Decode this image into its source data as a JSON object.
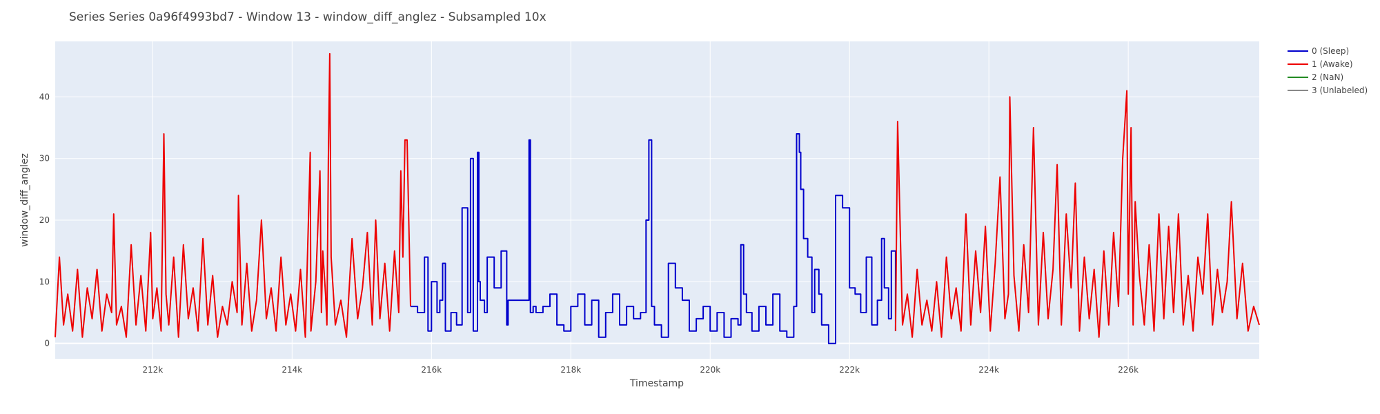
{
  "chart_data": {
    "type": "line",
    "title": "Series Series 0a96f4993bd7 - Window 13 - window_diff_anglez - Subsampled 10x",
    "xlabel": "Timestamp",
    "ylabel": "window_diff_anglez",
    "xlim": [
      210600,
      227880
    ],
    "ylim": [
      -2.5,
      49
    ],
    "x_ticks": [
      212000,
      214000,
      216000,
      218000,
      220000,
      222000,
      224000,
      226000
    ],
    "x_tick_labels": [
      "212k",
      "214k",
      "216k",
      "218k",
      "220k",
      "222k",
      "224k",
      "226k"
    ],
    "y_ticks": [
      0,
      10,
      20,
      30,
      40
    ],
    "y_tick_labels": [
      "0",
      "10",
      "20",
      "30",
      "40"
    ],
    "grid": true,
    "legend_position": "right",
    "background": "#e5ecf6",
    "legend": [
      {
        "label": "0 (Sleep)",
        "color": "#0000cc"
      },
      {
        "label": "1 (Awake)",
        "color": "#ee0000"
      },
      {
        "label": "2 (NaN)",
        "color": "#228b22"
      },
      {
        "label": "3 (Unlabeled)",
        "color": "#888888"
      }
    ],
    "series": [
      {
        "color": "#ee0000",
        "step": false,
        "x": [
          210600,
          210660,
          210720,
          210780,
          210850,
          210920,
          210990,
          211060,
          211130,
          211200,
          211270,
          211340,
          211410,
          211440,
          211480,
          211550,
          211620,
          211690,
          211760,
          211830,
          211900,
          211970,
          212000,
          212060,
          212120,
          212160,
          212190,
          212230,
          212300,
          212370,
          212440,
          212510,
          212580,
          212650,
          212720,
          212790,
          212860,
          212930,
          213000,
          213070,
          213140,
          213210,
          213230,
          213280,
          213350,
          213420,
          213490,
          213560,
          213630,
          213700,
          213770,
          213840,
          213910,
          213980,
          214050,
          214120,
          214190,
          214260,
          214270,
          214340,
          214400,
          214420,
          214440,
          214480,
          214500,
          214520,
          214540,
          214560,
          214620,
          214700,
          214780,
          214860,
          214940,
          215010,
          215080,
          215150,
          215200,
          215260,
          215330,
          215400,
          215470,
          215530,
          215560,
          215590,
          215620,
          215650,
          215700
        ],
        "y": [
          1,
          14,
          3,
          8,
          2,
          12,
          1,
          9,
          4,
          12,
          2,
          8,
          5,
          21,
          3,
          6,
          1,
          16,
          3,
          11,
          2,
          18,
          4,
          9,
          2,
          34,
          8,
          3,
          14,
          1,
          16,
          4,
          9,
          2,
          17,
          3,
          11,
          1,
          6,
          3,
          10,
          5,
          24,
          3,
          13,
          2,
          7,
          20,
          4,
          9,
          2,
          14,
          3,
          8,
          2,
          12,
          1,
          31,
          2,
          10,
          28,
          5,
          15,
          8,
          3,
          30,
          47,
          14,
          3,
          7,
          1,
          17,
          4,
          9,
          18,
          3,
          20,
          4,
          13,
          2,
          15,
          5,
          28,
          14,
          33,
          33,
          6
        ]
      },
      {
        "color": "#0000cc",
        "step": true,
        "x": [
          215700,
          215800,
          215900,
          215950,
          216000,
          216080,
          216120,
          216160,
          216200,
          216280,
          216360,
          216440,
          216520,
          216560,
          216600,
          216660,
          216680,
          216700,
          216760,
          216800,
          216900,
          217000,
          217080,
          217100,
          217200,
          217300,
          217400,
          217420,
          217460,
          217500,
          217600,
          217700,
          217800,
          217900,
          218000,
          218100,
          218200,
          218300,
          218400,
          218500,
          218600,
          218700,
          218800,
          218900,
          219000,
          219080,
          219120,
          219160,
          219200,
          219300,
          219400,
          219500,
          219600,
          219700,
          219800,
          219900,
          220000,
          220100,
          220200,
          220300,
          220400,
          220440,
          220480,
          220520,
          220600,
          220700,
          220800,
          220900,
          221000,
          221100,
          221200,
          221240,
          221280,
          221300,
          221340,
          221400,
          221460,
          221500,
          221560,
          221600,
          221700,
          221800,
          221900,
          222000,
          222080,
          222160,
          222240,
          222320,
          222400,
          222460,
          222500,
          222560,
          222600,
          222660
        ],
        "y": [
          6,
          5,
          14,
          2,
          10,
          5,
          7,
          13,
          2,
          5,
          3,
          22,
          5,
          30,
          2,
          31,
          10,
          7,
          5,
          14,
          9,
          15,
          3,
          7,
          7,
          7,
          33,
          5,
          6,
          5,
          6,
          8,
          3,
          2,
          6,
          8,
          3,
          7,
          1,
          5,
          8,
          3,
          6,
          4,
          5,
          20,
          33,
          6,
          3,
          1,
          13,
          9,
          7,
          2,
          4,
          6,
          2,
          5,
          1,
          4,
          3,
          16,
          8,
          5,
          2,
          6,
          3,
          8,
          2,
          1,
          6,
          34,
          31,
          25,
          17,
          14,
          5,
          12,
          8,
          3,
          0,
          24,
          22,
          9,
          8,
          5,
          14,
          3,
          7,
          17,
          9,
          4,
          15,
          2
        ]
      },
      {
        "color": "#ee0000",
        "step": false,
        "x": [
          222660,
          222690,
          222760,
          222830,
          222900,
          222970,
          223040,
          223110,
          223180,
          223250,
          223320,
          223390,
          223460,
          223530,
          223600,
          223670,
          223740,
          223810,
          223880,
          223950,
          224020,
          224090,
          224160,
          224230,
          224280,
          224300,
          224360,
          224430,
          224500,
          224570,
          224640,
          224710,
          224780,
          224850,
          224920,
          224980,
          225040,
          225110,
          225180,
          225240,
          225300,
          225370,
          225440,
          225510,
          225580,
          225650,
          225720,
          225790,
          225860,
          225920,
          225980,
          226000,
          226040,
          226070,
          226100,
          226160,
          226230,
          226300,
          226370,
          226440,
          226510,
          226580,
          226650,
          226720,
          226790,
          226860,
          226930,
          227000,
          227070,
          227140,
          227210,
          227280,
          227350,
          227420,
          227480,
          227560,
          227640,
          227720,
          227800,
          227880
        ],
        "y": [
          2,
          36,
          3,
          8,
          1,
          12,
          3,
          7,
          2,
          10,
          1,
          14,
          4,
          9,
          2,
          21,
          3,
          15,
          5,
          19,
          2,
          13,
          27,
          4,
          8,
          40,
          11,
          2,
          16,
          5,
          35,
          3,
          18,
          4,
          12,
          29,
          3,
          21,
          9,
          26,
          2,
          14,
          4,
          12,
          1,
          15,
          3,
          18,
          6,
          30,
          41,
          8,
          35,
          3,
          23,
          11,
          3,
          16,
          2,
          21,
          4,
          19,
          5,
          21,
          3,
          11,
          2,
          14,
          8,
          21,
          3,
          12,
          5,
          10,
          23,
          4,
          13,
          2,
          6,
          3
        ]
      }
    ]
  }
}
